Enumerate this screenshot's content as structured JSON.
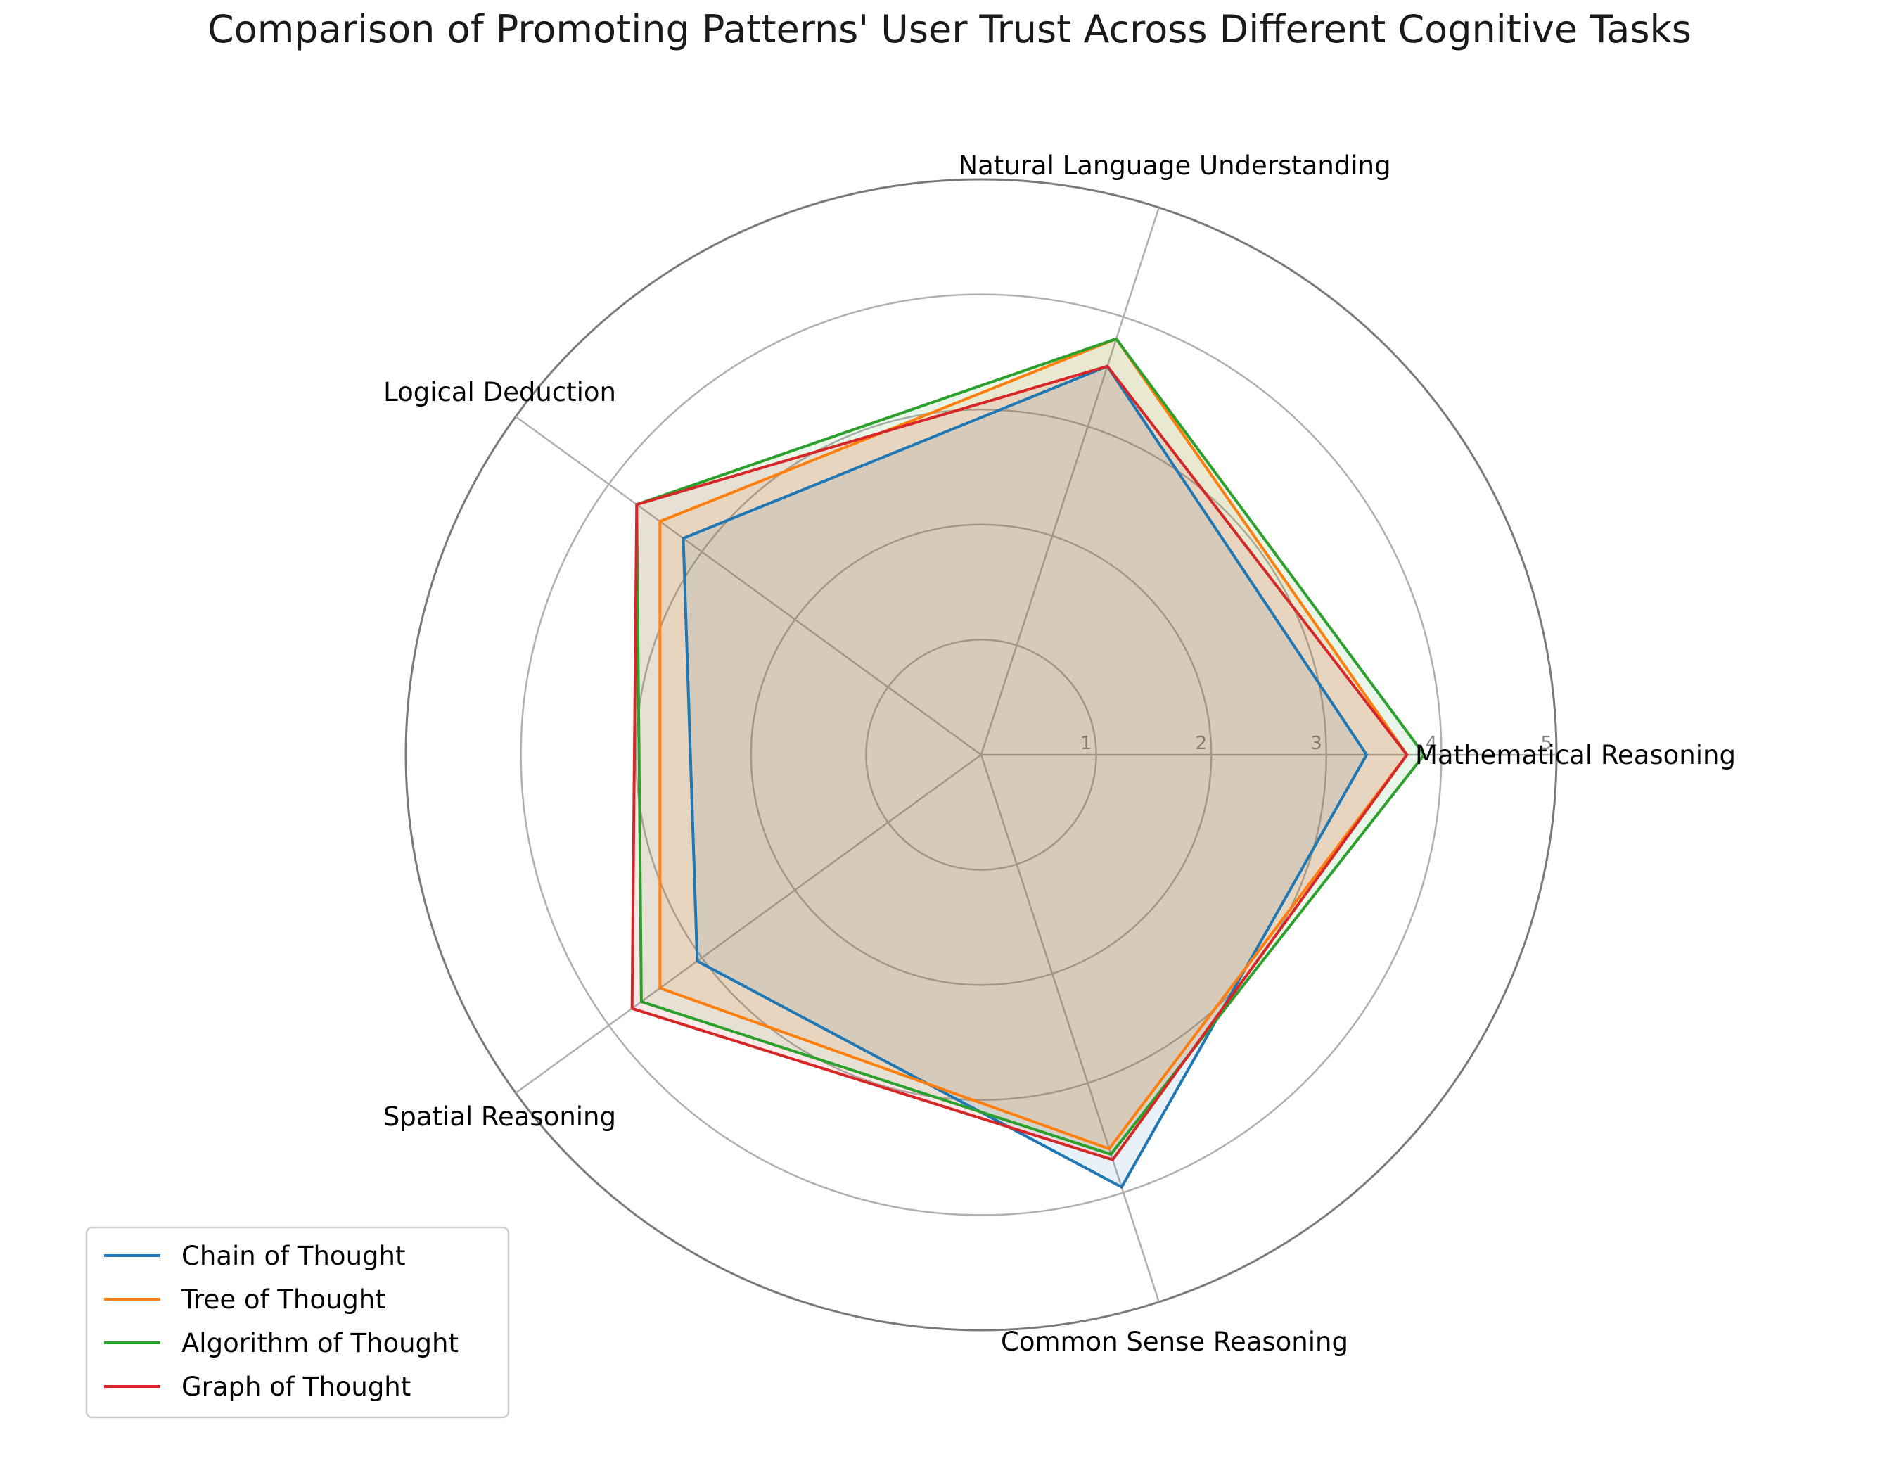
{
  "chart_data": {
    "type": "radar",
    "title": "Comparison of Promoting Patterns' User Trust Across Different Cognitive Tasks",
    "categories": [
      "Mathematical Reasoning",
      "Natural Language Understanding",
      "Logical Deduction",
      "Spatial Reasoning",
      "Common Sense Reasoning"
    ],
    "rlim": [
      0,
      5
    ],
    "rticks": [
      "1",
      "2",
      "3",
      "4",
      "5"
    ],
    "grid": true,
    "legend_position": "lower-left",
    "series": [
      {
        "name": "Chain of Thought",
        "color": "#1f77b4",
        "values": [
          3.35,
          3.55,
          3.2,
          3.05,
          3.95
        ]
      },
      {
        "name": "Tree of Thought",
        "color": "#ff7f0e",
        "values": [
          3.7,
          3.8,
          3.45,
          3.45,
          3.6
        ]
      },
      {
        "name": "Algorithm of Thought",
        "color": "#2ca02c",
        "values": [
          3.85,
          3.8,
          3.7,
          3.65,
          3.65
        ]
      },
      {
        "name": "Graph of Thought",
        "color": "#d62728",
        "values": [
          3.7,
          3.55,
          3.7,
          3.75,
          3.7
        ]
      }
    ]
  }
}
